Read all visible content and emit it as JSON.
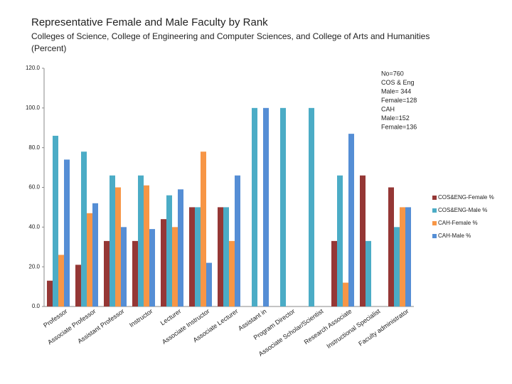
{
  "chart_data": {
    "type": "bar",
    "title": "Representative Female and Male Faculty by Rank",
    "subtitle": [
      "Colleges of Science, College of Engineering and Computer Sciences, and College of Arts and Humanities",
      "(Percent)"
    ],
    "annotation": [
      "No=760",
      "COS & Eng",
      "Male= 344",
      "Female=128",
      "CAH",
      "Male=152",
      "Female=136"
    ],
    "categories": [
      "Professor",
      "Associate Professor",
      "Assistant Professor",
      "Instructor",
      "Lecturer",
      "Associate Instructor",
      "Associate Lecturer",
      "Assistant in",
      "Program Director",
      "Associate Scholar/Scientist",
      "Research Associate",
      "Instructional Specialist",
      "Faculty administrator"
    ],
    "series": [
      {
        "name": "COS&ENG-Female %",
        "color": "#953735",
        "values": [
          13,
          21,
          33,
          33,
          44,
          50,
          50,
          0,
          0,
          0,
          33,
          66,
          60
        ]
      },
      {
        "name": "COS&ENG-Male %",
        "color": "#4bacc6",
        "values": [
          86,
          78,
          66,
          66,
          56,
          50,
          50,
          100,
          100,
          100,
          66,
          33,
          40
        ]
      },
      {
        "name": "CAH-Female %",
        "color": "#f79646",
        "values": [
          26,
          47,
          60,
          61,
          40,
          78,
          33,
          0,
          0,
          0,
          12,
          0,
          50
        ]
      },
      {
        "name": "CAH-Male %",
        "color": "#558ed5",
        "values": [
          74,
          52,
          40,
          39,
          59,
          22,
          66,
          100,
          0,
          0,
          87,
          0,
          50
        ]
      }
    ],
    "ylim": [
      0,
      120
    ],
    "yticks": [
      {
        "value": 0,
        "label": "0.0"
      },
      {
        "value": 20,
        "label": "20.0"
      },
      {
        "value": 40,
        "label": "40.0"
      },
      {
        "value": 60,
        "label": "60.0"
      },
      {
        "value": 80,
        "label": "80.0"
      },
      {
        "value": 100,
        "label": "100.0"
      },
      {
        "value": 120,
        "label": "120.0"
      }
    ],
    "legend": "right"
  }
}
